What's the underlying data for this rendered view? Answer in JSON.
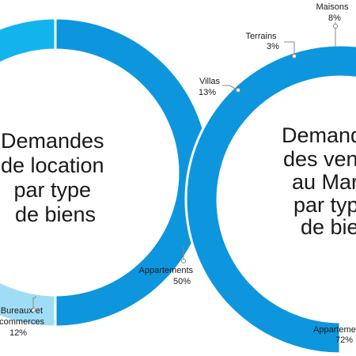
{
  "colors": {
    "dark": "#0d96de",
    "mid": "#13b4ee",
    "light": "#9fdcf6",
    "leader": "#888888",
    "text": "#1a1a1a"
  },
  "chart_data": [
    {
      "type": "pie",
      "style": "donut",
      "center_text": [
        "Demandes",
        "de location",
        "par type",
        "de biens"
      ],
      "slices": [
        {
          "name": "Appartements",
          "value": 50,
          "label": "50%"
        },
        {
          "name": "Bureaux et commerces",
          "value": 12,
          "label": "12%"
        },
        {
          "name": "",
          "value": 38,
          "label": ""
        }
      ]
    },
    {
      "type": "pie",
      "style": "donut",
      "center_text": [
        "Demandes",
        "des ventes",
        "au Maroc",
        "par type",
        "de biens"
      ],
      "slices": [
        {
          "name": "Appartements",
          "value": 72,
          "label": "72%"
        },
        {
          "name": "Villas",
          "value": 13,
          "label": "13%"
        },
        {
          "name": "Terrains",
          "value": 3,
          "label": "3%"
        },
        {
          "name": "Maisons",
          "value": 8,
          "label": "8%"
        }
      ]
    }
  ],
  "labels": {
    "left_appart_name": "Appartements",
    "left_appart_pct": "50%",
    "left_bureaux_name_1": "Bureaux et",
    "left_bureaux_name_2": "commerces",
    "left_bureaux_pct": "12%",
    "right_villas_name": "Villas",
    "right_villas_pct": "13%",
    "right_terrains_name": "Terrains",
    "right_terrains_pct": "3%",
    "right_maisons_name": "Maisons",
    "right_maisons_pct": "8%",
    "right_appart_name": "Appartements",
    "right_appart_pct": "72%"
  }
}
